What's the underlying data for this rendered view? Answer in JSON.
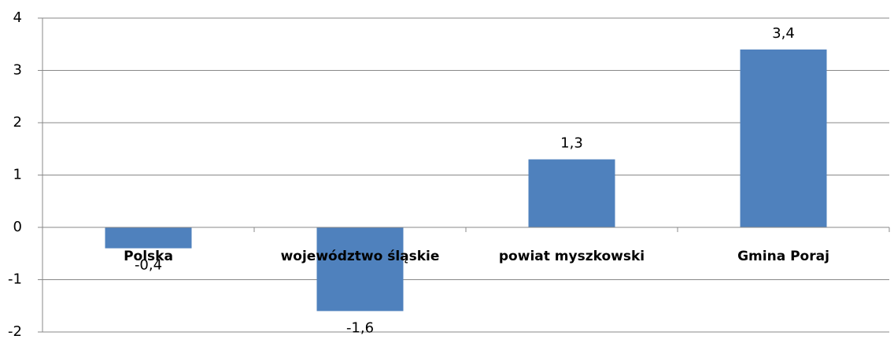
{
  "chart_data": {
    "type": "bar",
    "categories": [
      "Polska",
      "województwo śląskie",
      "powiat myszkowski",
      "Gmina Poraj"
    ],
    "values": [
      -0.4,
      -1.6,
      1.3,
      3.4
    ],
    "value_labels": [
      "-0,4",
      "-1,6",
      "1,3",
      "3,4"
    ],
    "color": "#4f81bd",
    "ylim": [
      -2,
      4
    ],
    "yticks": [
      -2,
      -1,
      0,
      1,
      2,
      3,
      4
    ],
    "grid": true
  }
}
